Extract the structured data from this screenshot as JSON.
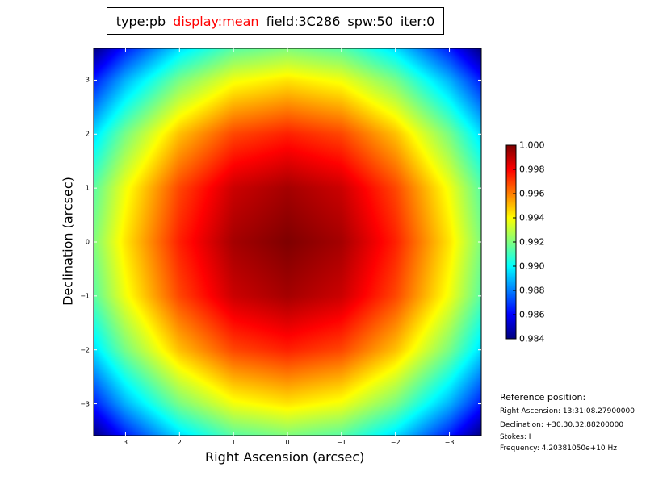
{
  "title": {
    "type": "type:pb",
    "display": "display:mean",
    "field": "field:3C286",
    "spw": "spw:50",
    "iter": "iter:0",
    "display_color": "#ff0000"
  },
  "reference": {
    "heading": "Reference position:",
    "ra": "Right Ascension: 13:31:08.27900000",
    "dec": "Declination: +30.30.32.88200000",
    "stokes": "Stokes: I",
    "freq": "Frequency: 4.20381050e+10 Hz"
  },
  "chart_data": {
    "type": "heatmap",
    "colormap": "jet",
    "xlabel": "Right Ascension (arcsec)",
    "ylabel": "Declination (arcsec)",
    "xlim": [
      3.59,
      -3.59
    ],
    "ylim": [
      -3.59,
      3.59
    ],
    "x_ticks": [
      3,
      2,
      1,
      0,
      -1,
      -2,
      -3
    ],
    "x_tick_labels": [
      "3",
      "2",
      "1",
      "0",
      "−1",
      "−2",
      "−3"
    ],
    "y_ticks": [
      3,
      2,
      1,
      0,
      -1,
      -2,
      -3
    ],
    "y_tick_labels": [
      "3",
      "2",
      "1",
      "0",
      "−1",
      "−2",
      "−3"
    ],
    "grid": false,
    "grid_x": [
      3.59,
      3,
      2,
      1,
      0,
      -1,
      -2,
      -3,
      -3.59
    ],
    "grid_y": [
      3.59,
      3,
      2,
      1,
      0,
      -1,
      -2,
      -3,
      -3.59
    ],
    "values": [
      [
        0.984,
        0.9864,
        0.9895,
        0.9914,
        0.992,
        0.9914,
        0.9895,
        0.9864,
        0.984
      ],
      [
        0.9864,
        0.9888,
        0.9919,
        0.9938,
        0.9944,
        0.9938,
        0.9919,
        0.9888,
        0.9864
      ],
      [
        0.9895,
        0.9919,
        0.995,
        0.9969,
        0.9975,
        0.9969,
        0.995,
        0.9919,
        0.9895
      ],
      [
        0.9914,
        0.9938,
        0.9969,
        0.9988,
        0.9994,
        0.9988,
        0.9969,
        0.9938,
        0.9914
      ],
      [
        0.992,
        0.9944,
        0.9975,
        0.9994,
        1.0,
        0.9994,
        0.9975,
        0.9944,
        0.992
      ],
      [
        0.9914,
        0.9938,
        0.9969,
        0.9988,
        0.9994,
        0.9988,
        0.9969,
        0.9938,
        0.9914
      ],
      [
        0.9895,
        0.9919,
        0.995,
        0.9969,
        0.9975,
        0.9969,
        0.995,
        0.9919,
        0.9895
      ],
      [
        0.9864,
        0.9888,
        0.9919,
        0.9938,
        0.9944,
        0.9938,
        0.9919,
        0.9888,
        0.9864
      ],
      [
        0.984,
        0.9864,
        0.9895,
        0.9914,
        0.992,
        0.9914,
        0.9895,
        0.9864,
        0.984
      ]
    ],
    "colorbar": {
      "range": [
        0.984,
        1.0
      ],
      "ticks": [
        "0.984",
        "0.986",
        "0.988",
        "0.990",
        "0.992",
        "0.994",
        "0.996",
        "0.998",
        "1.000"
      ]
    }
  }
}
